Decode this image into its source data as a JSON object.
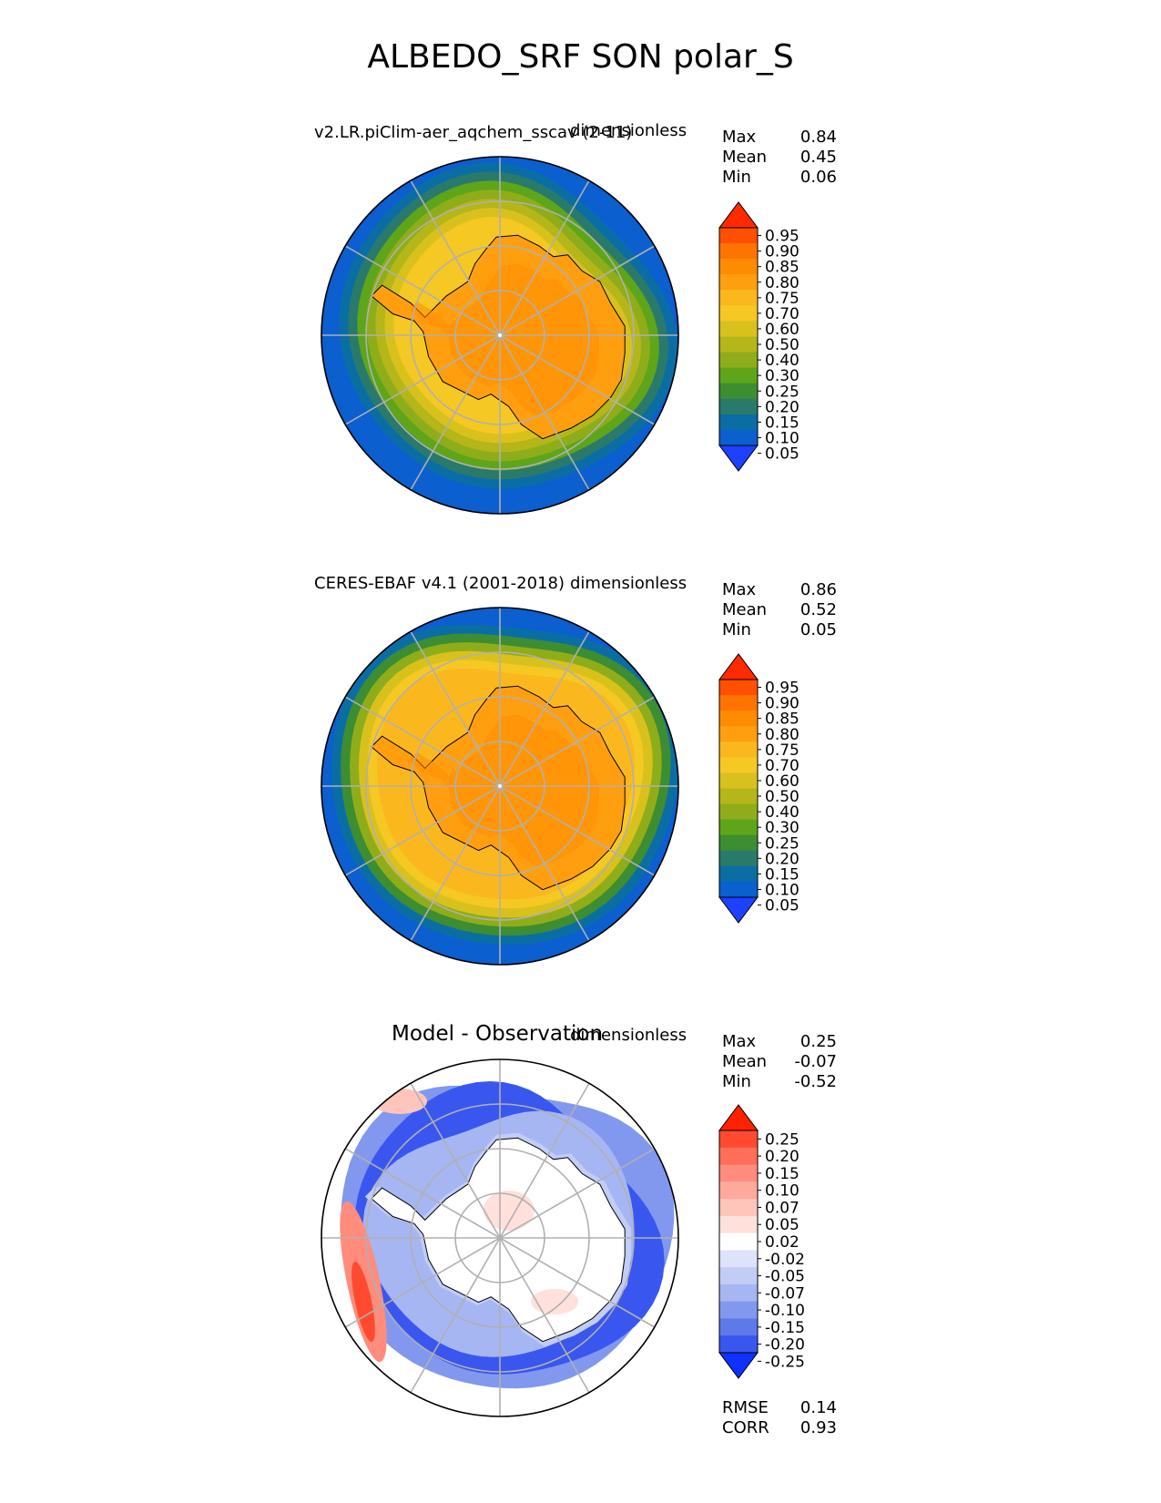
{
  "title": "ALBEDO_SRF SON polar_S",
  "chart_data": [
    {
      "type": "heatmap",
      "projection": "south-polar-stereographic",
      "title_left": "v2.LR.piClim-aer_aqchem_sscav (2-11)",
      "title_right": "dimensionless",
      "stats": [
        {
          "label": "Max",
          "value": "0.84"
        },
        {
          "label": "Mean",
          "value": "0.45"
        },
        {
          "label": "Min",
          "value": "0.06"
        }
      ],
      "colorbar": {
        "ticks": [
          "0.95",
          "0.90",
          "0.85",
          "0.80",
          "0.75",
          "0.70",
          "0.60",
          "0.50",
          "0.40",
          "0.30",
          "0.25",
          "0.20",
          "0.15",
          "0.10",
          "0.05"
        ],
        "colors": [
          "#ff2a00",
          "#ff5000",
          "#ff7300",
          "#ff8c00",
          "#ff9f10",
          "#fbb81e",
          "#f5c823",
          "#d9c11d",
          "#b4b61a",
          "#8fad1a",
          "#5ea51a",
          "#3d8d32",
          "#2a7a6b",
          "#0a6ea4",
          "#0b5fcf",
          "#1e40ff"
        ],
        "extend": "both"
      },
      "field": {
        "ocean_far": 0.07,
        "sea_ice": 0.55,
        "continent": 0.8
      }
    },
    {
      "type": "heatmap",
      "projection": "south-polar-stereographic",
      "title_left": "CERES-EBAF v4.1 (2001-2018)",
      "title_right": "dimensionless",
      "stats": [
        {
          "label": "Max",
          "value": "0.86"
        },
        {
          "label": "Mean",
          "value": "0.52"
        },
        {
          "label": "Min",
          "value": "0.05"
        }
      ],
      "colorbar": {
        "ticks": [
          "0.95",
          "0.90",
          "0.85",
          "0.80",
          "0.75",
          "0.70",
          "0.60",
          "0.50",
          "0.40",
          "0.30",
          "0.25",
          "0.20",
          "0.15",
          "0.10",
          "0.05"
        ],
        "colors": [
          "#ff2a00",
          "#ff5000",
          "#ff7300",
          "#ff8c00",
          "#ff9f10",
          "#fbb81e",
          "#f5c823",
          "#d9c11d",
          "#b4b61a",
          "#8fad1a",
          "#5ea51a",
          "#3d8d32",
          "#2a7a6b",
          "#0a6ea4",
          "#0b5fcf",
          "#1e40ff"
        ],
        "extend": "both"
      },
      "field": {
        "ocean_far": 0.07,
        "sea_ice": 0.68,
        "continent": 0.8
      }
    },
    {
      "type": "heatmap",
      "projection": "south-polar-stereographic",
      "title_center": "Model - Observation",
      "title_right": "dimensionless",
      "stats": [
        {
          "label": "Max",
          "value": "0.25"
        },
        {
          "label": "Mean",
          "value": "-0.07"
        },
        {
          "label": "Min",
          "value": "-0.52"
        }
      ],
      "extra_stats": [
        {
          "label": "RMSE",
          "value": "0.14"
        },
        {
          "label": "CORR",
          "value": "0.93"
        }
      ],
      "colorbar": {
        "ticks": [
          "0.25",
          "0.20",
          "0.15",
          "0.10",
          "0.07",
          "0.05",
          "0.02",
          "-0.02",
          "-0.05",
          "-0.07",
          "-0.10",
          "-0.15",
          "-0.20",
          "-0.25"
        ],
        "colors": [
          "#ff2200",
          "#ff4a30",
          "#ff6e58",
          "#ff8c7c",
          "#ffa99c",
          "#ffc4ba",
          "#ffe0da",
          "#ffffff",
          "#dce3fb",
          "#c2cdf6",
          "#a6b6f2",
          "#8298ee",
          "#5d79ea",
          "#3957ef",
          "#1030ff"
        ],
        "extend": "both"
      },
      "field": {
        "ocean_far": 0.0,
        "sea_ice": -0.2,
        "continent": 0.0
      }
    }
  ]
}
